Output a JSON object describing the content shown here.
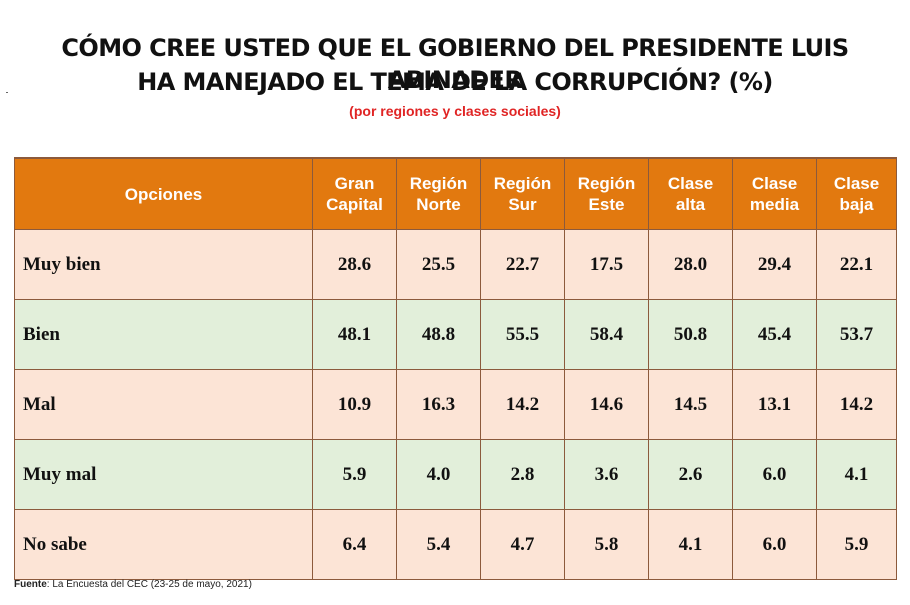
{
  "title_line1": "CÓMO CREE USTED QUE EL GOBIERNO DEL PRESIDENTE LUIS ABINADER",
  "title_line2": "HA MANEJADO EL TEMA DE LA CORRUPCIÓN? (%)",
  "subtitle": "(por regiones y clases sociales)",
  "source_label": "Fuente",
  "source_text": ": La Encuesta del CEC (23-25 de mayo, 2021)",
  "colors": {
    "header_bg": "#e2790f",
    "row_odd": "#fce4d6",
    "row_even": "#e2efda",
    "subtitle": "#e02424"
  },
  "chart_data": {
    "type": "table",
    "title": "CÓMO CREE USTED QUE EL GOBIERNO DEL PRESIDENTE LUIS ABINADER HA MANEJADO EL TEMA DE LA CORRUPCIÓN? (%)",
    "subtitle": "(por regiones y clases sociales)",
    "columns": [
      {
        "line1": "Opciones",
        "line2": ""
      },
      {
        "line1": "Gran",
        "line2": "Capital"
      },
      {
        "line1": "Región",
        "line2": "Norte"
      },
      {
        "line1": "Región",
        "line2": "Sur"
      },
      {
        "line1": "Región",
        "line2": "Este"
      },
      {
        "line1": "Clase",
        "line2": "alta"
      },
      {
        "line1": "Clase",
        "line2": "media"
      },
      {
        "line1": "Clase",
        "line2": "baja"
      }
    ],
    "rows": [
      {
        "label": "Muy bien",
        "values": [
          "28.6",
          "25.5",
          "22.7",
          "17.5",
          "28.0",
          "29.4",
          "22.1"
        ]
      },
      {
        "label": "Bien",
        "values": [
          "48.1",
          "48.8",
          "55.5",
          "58.4",
          "50.8",
          "45.4",
          "53.7"
        ]
      },
      {
        "label": "Mal",
        "values": [
          "10.9",
          "16.3",
          "14.2",
          "14.6",
          "14.5",
          "13.1",
          "14.2"
        ]
      },
      {
        "label": "Muy mal",
        "values": [
          "5.9",
          "4.0",
          "2.8",
          "3.6",
          "2.6",
          "6.0",
          "4.1"
        ]
      },
      {
        "label": "No sabe",
        "values": [
          "6.4",
          "5.4",
          "4.7",
          "5.8",
          "4.1",
          "6.0",
          "5.9"
        ]
      }
    ]
  }
}
